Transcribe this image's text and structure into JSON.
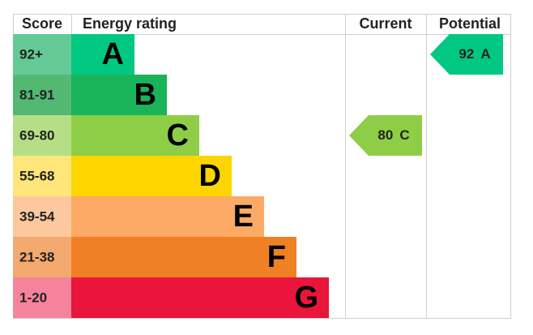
{
  "header": {
    "score": "Score",
    "rating": "Energy rating",
    "current": "Current",
    "potential": "Potential"
  },
  "bands": [
    {
      "score": "92+",
      "letter": "A",
      "color": "#00c781",
      "score_color": "#63ca95"
    },
    {
      "score": "81-91",
      "letter": "B",
      "color": "#19b459",
      "score_color": "#52b872"
    },
    {
      "score": "69-80",
      "letter": "C",
      "color": "#8dce46",
      "score_color": "#b5df86"
    },
    {
      "score": "55-68",
      "letter": "D",
      "color": "#ffd500",
      "score_color": "#ffe57a"
    },
    {
      "score": "39-54",
      "letter": "E",
      "color": "#fcaa65",
      "score_color": "#fdc89e"
    },
    {
      "score": "21-38",
      "letter": "F",
      "color": "#ef8023",
      "score_color": "#f4a96e"
    },
    {
      "score": "1-20",
      "letter": "G",
      "color": "#e9153b",
      "score_color": "#f5839c"
    }
  ],
  "current": {
    "value": 80,
    "letter": "C"
  },
  "potential": {
    "value": 92,
    "letter": "A"
  }
}
